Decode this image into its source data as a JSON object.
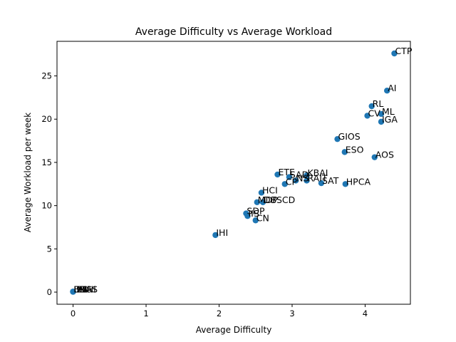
{
  "chart_data": {
    "type": "scatter",
    "title": "Average Difficulty vs Average Workload",
    "xlabel": "Average Difficulty",
    "ylabel": "Average Workload per week",
    "xlim": [
      -0.22,
      4.62
    ],
    "ylim": [
      -1.4,
      29.0
    ],
    "xticks": [
      0,
      1,
      2,
      3,
      4
    ],
    "yticks": [
      0,
      5,
      10,
      15,
      20,
      25
    ],
    "grid": false,
    "legend": "none",
    "marker_color": "#1f77b4",
    "points": [
      {
        "label": "CTP",
        "x": 4.4,
        "y": 27.6
      },
      {
        "label": "AI",
        "x": 4.3,
        "y": 23.3
      },
      {
        "label": "RL",
        "x": 4.09,
        "y": 21.5
      },
      {
        "label": "ML",
        "x": 4.22,
        "y": 20.6
      },
      {
        "label": "CV",
        "x": 4.03,
        "y": 20.4
      },
      {
        "label": "IGA",
        "x": 4.22,
        "y": 19.7
      },
      {
        "label": "GIOS",
        "x": 3.62,
        "y": 17.7
      },
      {
        "label": "ESO",
        "x": 3.72,
        "y": 16.2
      },
      {
        "label": "AOS",
        "x": 4.13,
        "y": 15.6
      },
      {
        "label": "ETE",
        "x": 2.8,
        "y": 13.6
      },
      {
        "label": "KBAI",
        "x": 3.2,
        "y": 13.5
      },
      {
        "label": "SAD",
        "x": 2.96,
        "y": 13.3
      },
      {
        "label": "NS",
        "x": 3.05,
        "y": 12.9
      },
      {
        "label": "RAIT",
        "x": 3.2,
        "y": 12.9
      },
      {
        "label": "CP",
        "x": 2.9,
        "y": 12.5
      },
      {
        "label": "SAT",
        "x": 3.4,
        "y": 12.6
      },
      {
        "label": "HPCA",
        "x": 3.73,
        "y": 12.5
      },
      {
        "label": "HCI",
        "x": 2.58,
        "y": 11.5
      },
      {
        "label": "MDP",
        "x": 2.52,
        "y": 10.4
      },
      {
        "label": "DBSCD",
        "x": 2.6,
        "y": 10.4
      },
      {
        "label": "SDP",
        "x": 2.37,
        "y": 9.1
      },
      {
        "label": "IIS",
        "x": 2.39,
        "y": 8.8
      },
      {
        "label": "CN",
        "x": 2.5,
        "y": 8.3
      },
      {
        "label": "IHI",
        "x": 1.95,
        "y": 6.6
      },
      {
        "label": "EPI",
        "x": 0.0,
        "y": 0.05
      },
      {
        "label": "IIS",
        "x": 0.0,
        "y": 0.05
      },
      {
        "label": "ISS",
        "x": 0.0,
        "y": 0.05
      },
      {
        "label": "BDHI",
        "x": 0.0,
        "y": 0.05
      },
      {
        "label": "DVA",
        "x": 0.0,
        "y": 0.05
      }
    ],
    "label_text": {
      "ISS_overlap": "ISS"
    }
  }
}
